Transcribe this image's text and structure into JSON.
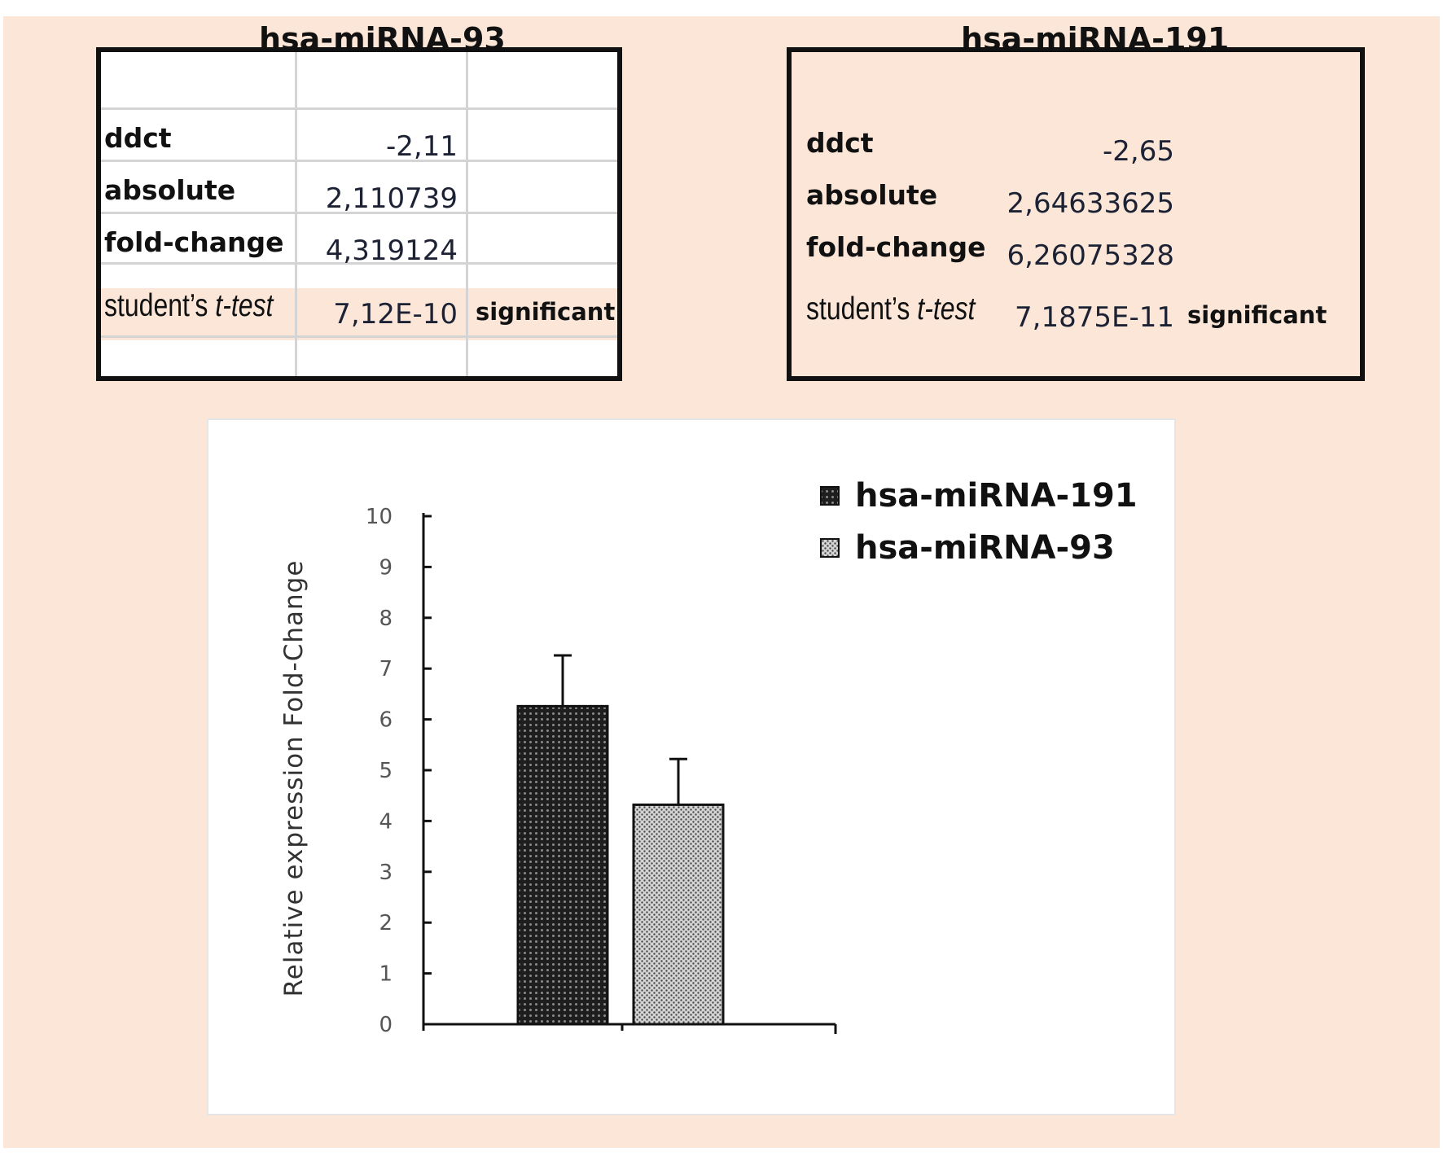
{
  "tables": [
    {
      "title": "hsa-miRNA-93",
      "rows": [
        {
          "label": "ddct",
          "value": "-2,11"
        },
        {
          "label": "absolute",
          "value": "2,110739"
        },
        {
          "label": "fold-change",
          "value": "4,319124"
        },
        {
          "label_prefix": "student’s ",
          "label_italic": "t-test",
          "value": "7,12E-10",
          "note": "significant"
        }
      ]
    },
    {
      "title": "hsa-miRNA-191",
      "rows": [
        {
          "label": "ddct",
          "value": "-2,65"
        },
        {
          "label": "absolute",
          "value": "2,64633625"
        },
        {
          "label": "fold-change",
          "value": "6,26075328"
        },
        {
          "label_prefix": "student’s ",
          "label_italic": "t-test",
          "value": "7,1875E-11",
          "note": "significant"
        }
      ]
    }
  ],
  "colors": {
    "background": "#fbe6d8",
    "bar_191": "#2b2b2b",
    "bar_93": "#9a9a9a"
  },
  "chart_data": {
    "type": "bar",
    "ylabel": "Relative expression  Fold-Change",
    "ylim": [
      0,
      10
    ],
    "yticks": [
      "0",
      "1",
      "2",
      "3",
      "4",
      "5",
      "6",
      "7",
      "8",
      "9",
      "10"
    ],
    "legend_position": "top-right",
    "series": [
      {
        "name": "hsa-miRNA-191",
        "value": 6.26,
        "error": 1.0,
        "pattern": "dark-dots"
      },
      {
        "name": "hsa-miRNA-93",
        "value": 4.32,
        "error": 0.9,
        "pattern": "light-dots"
      }
    ]
  }
}
